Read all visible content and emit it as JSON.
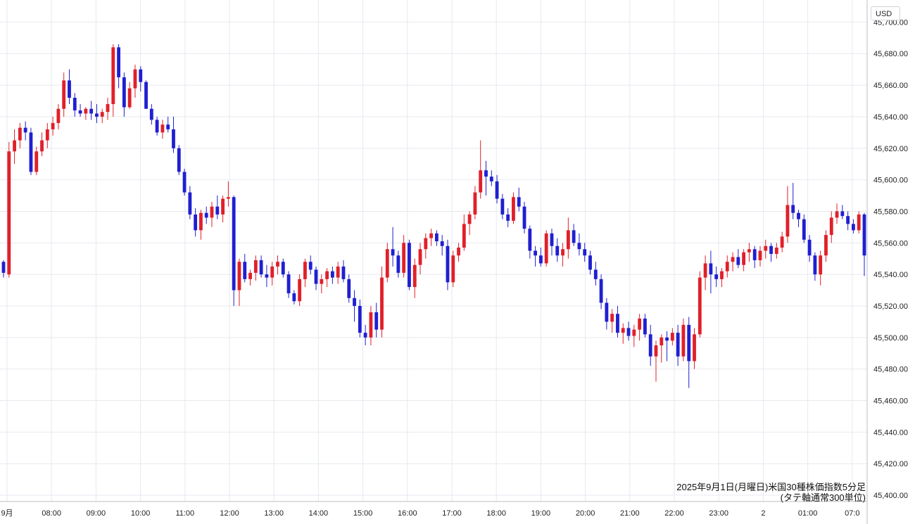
{
  "currency_label": "USD",
  "caption": {
    "line1": "2025年9月1日(月曜日)米国30種株価指数5分足",
    "line2": "(タテ軸通常300単位)"
  },
  "colors": {
    "up": "#e0202a",
    "down": "#1f1fd1",
    "grid": "#e6e9ef"
  },
  "chart_data": {
    "type": "candlestick",
    "x_tick_labels": [
      "9月",
      "08:00",
      "09:00",
      "10:00",
      "11:00",
      "12:00",
      "13:00",
      "14:00",
      "15:00",
      "16:00",
      "17:00",
      "18:00",
      "19:00",
      "20:00",
      "21:00",
      "22:00",
      "23:00",
      "2",
      "01:00",
      "07:0"
    ],
    "y_tick_labels": [
      "45,700.00",
      "45,680.00",
      "45,660.00",
      "45,640.00",
      "45,620.00",
      "45,600.00",
      "45,580.00",
      "45,560.00",
      "45,540.00",
      "45,520.00",
      "45,500.00",
      "45,480.00",
      "45,460.00",
      "45,440.00",
      "45,420.00",
      "45,400.00"
    ],
    "ylim": [
      45396,
      45714
    ],
    "grid": true,
    "candles": [
      [
        45548,
        45549,
        45538,
        45541
      ],
      [
        45540,
        45624,
        45538,
        45618
      ],
      [
        45618,
        45632,
        45610,
        45625
      ],
      [
        45625,
        45636,
        45620,
        45633
      ],
      [
        45633,
        45637,
        45625,
        45630
      ],
      [
        45630,
        45633,
        45603,
        45605
      ],
      [
        45605,
        45621,
        45603,
        45618
      ],
      [
        45618,
        45630,
        45615,
        45625
      ],
      [
        45625,
        45636,
        45620,
        45632
      ],
      [
        45632,
        45640,
        45628,
        45636
      ],
      [
        45636,
        45648,
        45632,
        45645
      ],
      [
        45645,
        45668,
        45640,
        45663
      ],
      [
        45663,
        45670,
        45648,
        45652
      ],
      [
        45652,
        45655,
        45640,
        45644
      ],
      [
        45644,
        45648,
        45640,
        45642
      ],
      [
        45642,
        45646,
        45638,
        45645
      ],
      [
        45645,
        45650,
        45638,
        45642
      ],
      [
        45642,
        45648,
        45636,
        45640
      ],
      [
        45640,
        45645,
        45636,
        45643
      ],
      [
        45643,
        45652,
        45638,
        45648
      ],
      [
        45648,
        45686,
        45640,
        45684
      ],
      [
        45684,
        45686,
        45658,
        45665
      ],
      [
        45665,
        45668,
        45640,
        45646
      ],
      [
        45646,
        45662,
        45645,
        45658
      ],
      [
        45658,
        45673,
        45652,
        45670
      ],
      [
        45670,
        45672,
        45656,
        45662
      ],
      [
        45662,
        45663,
        45645,
        45645
      ],
      [
        45645,
        45648,
        45635,
        45638
      ],
      [
        45638,
        45640,
        45628,
        45630
      ],
      [
        45630,
        45638,
        45626,
        45635
      ],
      [
        45635,
        45640,
        45630,
        45632
      ],
      [
        45632,
        45640,
        45617,
        45620
      ],
      [
        45620,
        45622,
        45603,
        45605
      ],
      [
        45605,
        45607,
        45590,
        45592
      ],
      [
        45592,
        45596,
        45575,
        45578
      ],
      [
        45578,
        45582,
        45564,
        45568
      ],
      [
        45568,
        45581,
        45562,
        45579
      ],
      [
        45579,
        45583,
        45572,
        45576
      ],
      [
        45576,
        45586,
        45570,
        45583
      ],
      [
        45583,
        45590,
        45575,
        45578
      ],
      [
        45578,
        45590,
        45573,
        45588
      ],
      [
        45588,
        45599,
        45583,
        45589
      ],
      [
        45589,
        45590,
        45520,
        45530
      ],
      [
        45530,
        45550,
        45520,
        45548
      ],
      [
        45548,
        45553,
        45535,
        45537
      ],
      [
        45537,
        45543,
        45533,
        45541
      ],
      [
        45541,
        45552,
        45536,
        45549
      ],
      [
        45549,
        45552,
        45538,
        45540
      ],
      [
        45540,
        45546,
        45532,
        45538
      ],
      [
        45538,
        45548,
        45533,
        45545
      ],
      [
        45545,
        45552,
        45540,
        45548
      ],
      [
        45548,
        45550,
        45538,
        45540
      ],
      [
        45540,
        45542,
        45525,
        45528
      ],
      [
        45528,
        45530,
        45521,
        45523
      ],
      [
        45523,
        45540,
        45520,
        45537
      ],
      [
        45537,
        45550,
        45532,
        45548
      ],
      [
        45548,
        45552,
        45540,
        45543
      ],
      [
        45543,
        45545,
        45530,
        45534
      ],
      [
        45534,
        45540,
        45528,
        45537
      ],
      [
        45537,
        45544,
        45532,
        45542
      ],
      [
        45542,
        45545,
        45534,
        45538
      ],
      [
        45538,
        45548,
        45534,
        45545
      ],
      [
        45545,
        45549,
        45535,
        45537
      ],
      [
        45537,
        45540,
        45522,
        45525
      ],
      [
        45525,
        45530,
        45510,
        45520
      ],
      [
        45520,
        45524,
        45500,
        45503
      ],
      [
        45503,
        45508,
        45495,
        45500
      ],
      [
        45500,
        45520,
        45495,
        45516
      ],
      [
        45516,
        45522,
        45500,
        45505
      ],
      [
        45505,
        45545,
        45500,
        45538
      ],
      [
        45538,
        45560,
        45535,
        45556
      ],
      [
        45556,
        45570,
        45545,
        45552
      ],
      [
        45552,
        45555,
        45538,
        45541
      ],
      [
        45541,
        45565,
        45538,
        45560
      ],
      [
        45560,
        45562,
        45530,
        45532
      ],
      [
        45532,
        45550,
        45525,
        45546
      ],
      [
        45546,
        45560,
        45540,
        45556
      ],
      [
        45556,
        45566,
        45550,
        45563
      ],
      [
        45563,
        45569,
        45558,
        45566
      ],
      [
        45566,
        45568,
        45558,
        45561
      ],
      [
        45561,
        45565,
        45552,
        45558
      ],
      [
        45558,
        45562,
        45530,
        45535
      ],
      [
        45535,
        45555,
        45532,
        45552
      ],
      [
        45552,
        45560,
        45548,
        45557
      ],
      [
        45557,
        45578,
        45555,
        45572
      ],
      [
        45572,
        45580,
        45565,
        45578
      ],
      [
        45578,
        45596,
        45575,
        45592
      ],
      [
        45592,
        45625,
        45588,
        45606
      ],
      [
        45606,
        45612,
        45590,
        45602
      ],
      [
        45602,
        45606,
        45596,
        45599
      ],
      [
        45599,
        45603,
        45585,
        45588
      ],
      [
        45588,
        45591,
        45575,
        45578
      ],
      [
        45578,
        45582,
        45570,
        45574
      ],
      [
        45574,
        45592,
        45572,
        45589
      ],
      [
        45589,
        45595,
        45580,
        45583
      ],
      [
        45583,
        45586,
        45566,
        45569
      ],
      [
        45569,
        45571,
        45550,
        45555
      ],
      [
        45555,
        45558,
        45545,
        45552
      ],
      [
        45552,
        45557,
        45545,
        45547
      ],
      [
        45547,
        45568,
        45545,
        45566
      ],
      [
        45566,
        45569,
        45552,
        45558
      ],
      [
        45558,
        45563,
        45548,
        45552
      ],
      [
        45552,
        45560,
        45545,
        45556
      ],
      [
        45556,
        45576,
        45550,
        45568
      ],
      [
        45568,
        45572,
        45558,
        45560
      ],
      [
        45560,
        45566,
        45552,
        45556
      ],
      [
        45556,
        45560,
        45548,
        45552
      ],
      [
        45552,
        45555,
        45540,
        45543
      ],
      [
        45543,
        45548,
        45533,
        45537
      ],
      [
        45537,
        45540,
        45518,
        45522
      ],
      [
        45522,
        45525,
        45505,
        45510
      ],
      [
        45510,
        45518,
        45503,
        45515
      ],
      [
        45515,
        45520,
        45500,
        45503
      ],
      [
        45503,
        45509,
        45496,
        45506
      ],
      [
        45506,
        45510,
        45498,
        45501
      ],
      [
        45501,
        45508,
        45494,
        45505
      ],
      [
        45505,
        45515,
        45498,
        45512
      ],
      [
        45512,
        45515,
        45500,
        45502
      ],
      [
        45502,
        45508,
        45482,
        45488
      ],
      [
        45488,
        45498,
        45472,
        45495
      ],
      [
        45495,
        45502,
        45484,
        45500
      ],
      [
        45500,
        45504,
        45485,
        45498
      ],
      [
        45498,
        45506,
        45495,
        45503
      ],
      [
        45503,
        45508,
        45482,
        45488
      ],
      [
        45488,
        45512,
        45485,
        45508
      ],
      [
        45508,
        45513,
        45468,
        45485
      ],
      [
        45485,
        45506,
        45480,
        45502
      ],
      [
        45502,
        45542,
        45500,
        45538
      ],
      [
        45538,
        45552,
        45530,
        45547
      ],
      [
        45547,
        45555,
        45528,
        45540
      ],
      [
        45540,
        45545,
        45532,
        45537
      ],
      [
        45537,
        45544,
        45532,
        45542
      ],
      [
        45542,
        45552,
        45538,
        45548
      ],
      [
        45548,
        45554,
        45542,
        45551
      ],
      [
        45551,
        45556,
        45544,
        45546
      ],
      [
        45546,
        45556,
        45542,
        45554
      ],
      [
        45554,
        45560,
        45548,
        45556
      ],
      [
        45556,
        45558,
        45544,
        45549
      ],
      [
        45549,
        45558,
        45545,
        45555
      ],
      [
        45555,
        45562,
        45550,
        45558
      ],
      [
        45558,
        45560,
        45548,
        45553
      ],
      [
        45553,
        45560,
        45550,
        45557
      ],
      [
        45557,
        45567,
        45554,
        45564
      ],
      [
        45564,
        45596,
        45560,
        45584
      ],
      [
        45584,
        45598,
        45575,
        45579
      ],
      [
        45579,
        45581,
        45570,
        45575
      ],
      [
        45575,
        45578,
        45560,
        45562
      ],
      [
        45562,
        45565,
        45548,
        45552
      ],
      [
        45552,
        45554,
        45536,
        45540
      ],
      [
        45540,
        45555,
        45533,
        45552
      ],
      [
        45552,
        45568,
        45548,
        45565
      ],
      [
        45565,
        45580,
        45560,
        45576
      ],
      [
        45576,
        45585,
        45572,
        45580
      ],
      [
        45580,
        45584,
        45575,
        45577
      ],
      [
        45577,
        45580,
        45568,
        45572
      ],
      [
        45572,
        45575,
        45566,
        45568
      ],
      [
        45568,
        45580,
        45566,
        45578
      ],
      [
        45578,
        45579,
        45539,
        45552
      ]
    ]
  }
}
